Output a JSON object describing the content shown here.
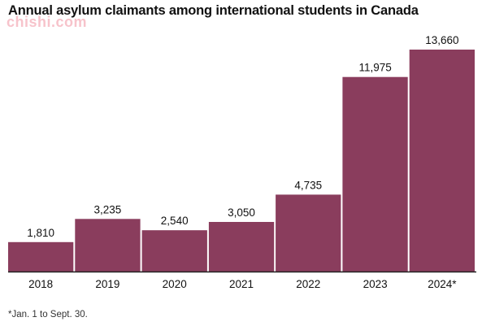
{
  "watermark": "chishi.com",
  "footnote": "*Jan. 1 to Sept. 30.",
  "chart_data": {
    "type": "bar",
    "title": "Annual asylum claimants among international students in Canada",
    "categories": [
      "2018",
      "2019",
      "2020",
      "2021",
      "2022",
      "2023",
      "2024*"
    ],
    "values": [
      1810,
      3235,
      2540,
      3050,
      4735,
      11975,
      13660
    ],
    "value_labels": [
      "1,810",
      "3,235",
      "2,540",
      "3,050",
      "4,735",
      "11,975",
      "13,660"
    ],
    "xlabel": "",
    "ylabel": "",
    "ylim": [
      0,
      13660
    ],
    "grid": false,
    "legend": "none",
    "colors": {
      "bar": "#8a3d5d",
      "axis": "#222222",
      "text": "#111111"
    }
  }
}
